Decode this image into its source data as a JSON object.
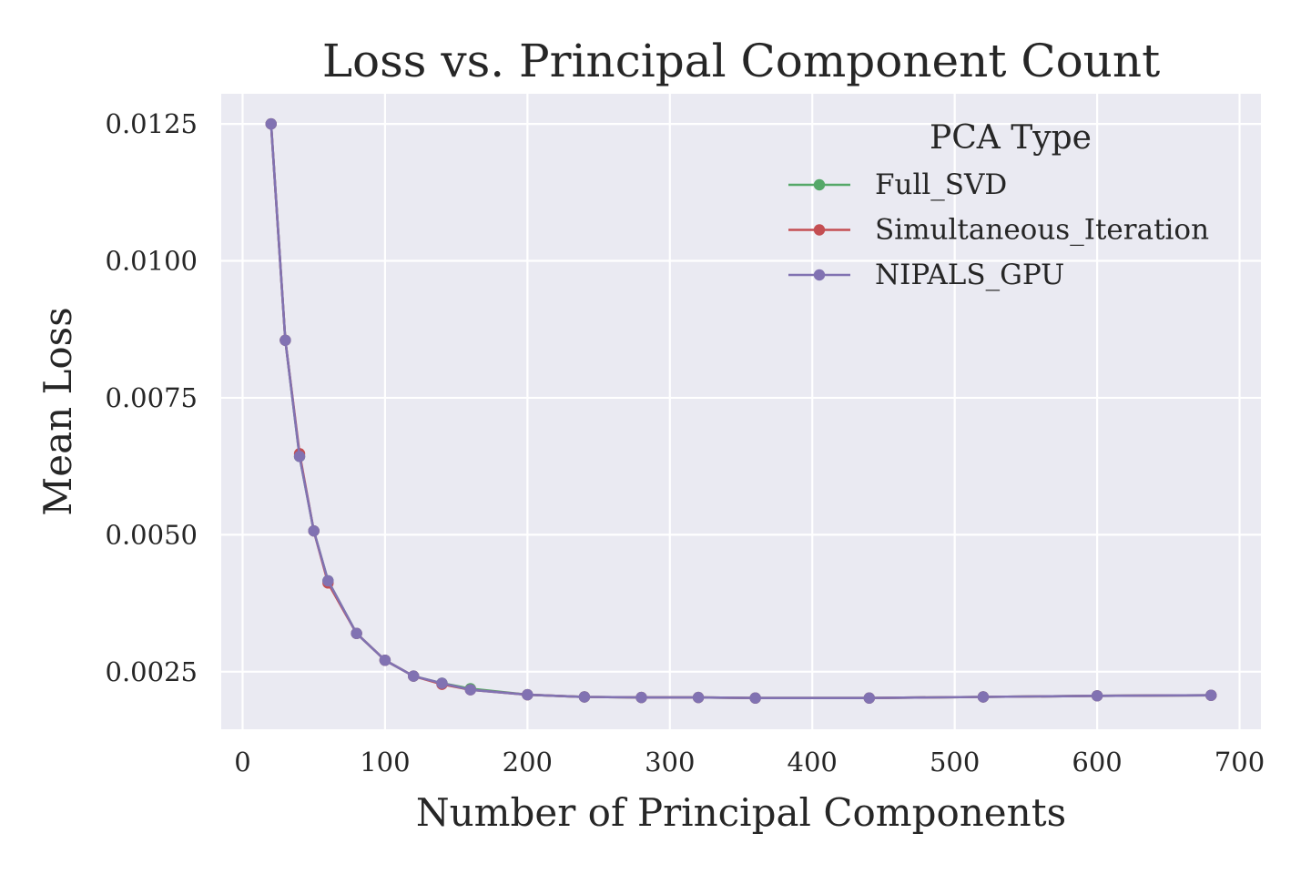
{
  "chart_data": {
    "type": "line",
    "title": "Loss vs. Principal Component Count",
    "xlabel": "Number of Principal Components",
    "ylabel": "Mean Loss",
    "xlim": [
      -15,
      715
    ],
    "ylim": [
      0.00145,
      0.01305
    ],
    "x_ticks": [
      0,
      100,
      200,
      300,
      400,
      500,
      600,
      700
    ],
    "x_tick_labels": [
      "0",
      "100",
      "200",
      "300",
      "400",
      "500",
      "600",
      "700"
    ],
    "y_ticks": [
      0.0025,
      0.005,
      0.0075,
      0.01,
      0.0125
    ],
    "y_tick_labels": [
      "0.0025",
      "0.0050",
      "0.0075",
      "0.0100",
      "0.0125"
    ],
    "grid": true,
    "legend": {
      "title": "PCA Type",
      "placement": "upper-right"
    },
    "series": [
      {
        "name": "Full_SVD",
        "color": "#55a868",
        "x": [
          20,
          30,
          40,
          50,
          60,
          80,
          100,
          120,
          140,
          160,
          200,
          240,
          280,
          320,
          360,
          440,
          520,
          600,
          680
        ],
        "y": [
          0.0125,
          0.00855,
          0.00643,
          0.00507,
          0.00416,
          0.0032,
          0.00271,
          0.00242,
          0.00229,
          0.00219,
          0.00208,
          0.00204,
          0.00203,
          0.00203,
          0.00202,
          0.00202,
          0.00204,
          0.00206,
          0.00207
        ]
      },
      {
        "name": "Simultaneous_Iteration",
        "color": "#c44e52",
        "x": [
          20,
          30,
          40,
          50,
          60,
          80,
          100,
          120,
          140,
          160,
          200,
          240,
          280,
          320,
          360,
          440,
          520,
          600,
          680
        ],
        "y": [
          0.0125,
          0.00855,
          0.00648,
          0.00507,
          0.00412,
          0.0032,
          0.00271,
          0.00242,
          0.00227,
          0.00217,
          0.00208,
          0.00204,
          0.00203,
          0.00203,
          0.00202,
          0.00202,
          0.00204,
          0.00206,
          0.00207
        ]
      },
      {
        "name": "NIPALS_GPU",
        "color": "#8172b2",
        "x": [
          20,
          30,
          40,
          50,
          60,
          80,
          100,
          120,
          140,
          160,
          200,
          240,
          280,
          320,
          360,
          440,
          520,
          600,
          680
        ],
        "y": [
          0.0125,
          0.00855,
          0.00643,
          0.00507,
          0.00416,
          0.0032,
          0.00271,
          0.00242,
          0.00229,
          0.00217,
          0.00208,
          0.00204,
          0.00203,
          0.00203,
          0.00202,
          0.00202,
          0.00204,
          0.00206,
          0.00207
        ]
      }
    ]
  },
  "colors": {
    "plot_background": "#eaeaf2",
    "grid": "#ffffff",
    "text": "#262626"
  }
}
